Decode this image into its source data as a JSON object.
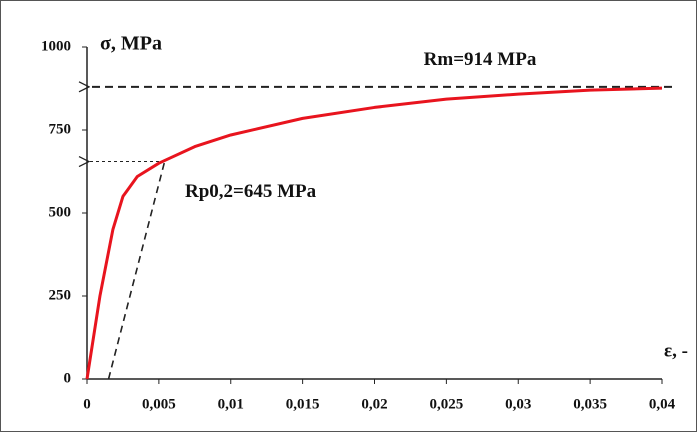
{
  "chart_data": {
    "type": "line",
    "y_label": "σ, MPa",
    "x_label": "ε, -",
    "xlim": [
      0,
      0.04
    ],
    "ylim": [
      0,
      1000
    ],
    "xticks": [
      0,
      {
        "value": 0.005,
        "label": "0,005"
      },
      {
        "value": 0.01,
        "label": "0,01"
      },
      {
        "value": 0.015,
        "label": "0,015"
      },
      {
        "value": 0.02,
        "label": "0,02"
      },
      {
        "value": 0.025,
        "label": "0,025"
      },
      {
        "value": 0.03,
        "label": "0,03"
      },
      {
        "value": 0.035,
        "label": "0,035"
      },
      {
        "value": 0.04,
        "label": "0,04"
      }
    ],
    "yticks": [
      0,
      250,
      500,
      750,
      1000
    ],
    "series": [
      {
        "color": "#e8141e",
        "x": [
          0,
          0.0009,
          0.0018,
          0.0025,
          0.0035,
          0.005,
          0.0075,
          0.01,
          0.015,
          0.02,
          0.025,
          0.03,
          0.035,
          0.04
        ],
        "values": [
          0,
          250,
          450,
          550,
          610,
          650,
          700,
          735,
          785,
          818,
          843,
          858,
          870,
          876
        ]
      }
    ],
    "annotations": [
      {
        "text": "Rm=914 MPa",
        "y": 880
      },
      {
        "text": "Rp0,2=645 MPa",
        "y": 655
      }
    ],
    "offset_line": {
      "x": [
        0.0015,
        0.0054
      ],
      "y": [
        0,
        655
      ]
    }
  }
}
